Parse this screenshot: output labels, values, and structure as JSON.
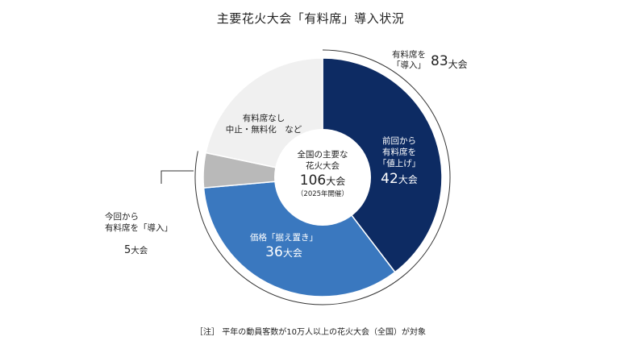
{
  "title": "主要花火大会「有料席」導入状況",
  "note": "［注］ 平年の動員客数が10万人以上の花火大会（全国）が対象",
  "colors": {
    "raise": "#0d2b63",
    "keep": "#3a78bf",
    "new": "#b9b9b9",
    "none": "#f0f0f0",
    "outline": "#333333"
  },
  "center": {
    "line1": "全国の主要な",
    "line2": "花火大会",
    "value": "106",
    "unit": "大会",
    "sub": "（2025年開催）"
  },
  "paid_total": {
    "line1": "有料席を",
    "line2": "「導入」",
    "value": "83",
    "unit": "大会"
  },
  "chart_data": {
    "type": "pie",
    "total": 106,
    "slices": [
      {
        "key": "raise",
        "label_lines": [
          "前回から",
          "有料席を",
          "「値上げ」"
        ],
        "value": 42,
        "unit": "大会"
      },
      {
        "key": "keep",
        "label_lines": [
          "価格「据え置き」"
        ],
        "value": 36,
        "unit": "大会"
      },
      {
        "key": "new",
        "label_lines": [
          "今回から",
          "有料席を「導入」"
        ],
        "value": 5,
        "unit": "大会"
      },
      {
        "key": "none",
        "label_lines": [
          "有料席なし",
          "中止・無料化　など"
        ],
        "value": 23,
        "unit": ""
      }
    ]
  }
}
